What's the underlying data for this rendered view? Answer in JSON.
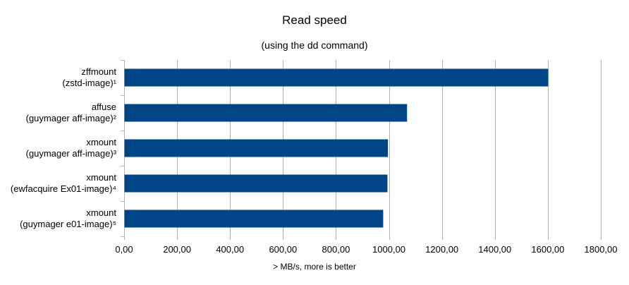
{
  "chart_data": {
    "type": "bar",
    "orientation": "horizontal",
    "title": "Read speed",
    "subtitle": "(using the dd command)",
    "xlabel": "> MB/s, more is better",
    "ylabel": "",
    "categories": [
      [
        "zffmount",
        "(zstd-image)¹"
      ],
      [
        "affuse",
        "(guymager aff-image)²"
      ],
      [
        "xmount",
        "(guymager aff-image)³"
      ],
      [
        "xmount",
        "(ewfacquire Ex01-image)⁴"
      ],
      [
        "xmount",
        "(guymager e01-image)⁵"
      ]
    ],
    "values": [
      1600,
      1067,
      995,
      993,
      977
    ],
    "xlim": [
      0,
      1800
    ],
    "xticks": [
      0,
      200,
      400,
      600,
      800,
      1000,
      1200,
      1400,
      1600,
      1800
    ],
    "xtick_labels": [
      "0,00",
      "200,00",
      "400,00",
      "600,00",
      "800,00",
      "1000,00",
      "1200,00",
      "1400,00",
      "1600,00",
      "1800,00"
    ],
    "grid": true,
    "legend": "none",
    "bar_color": "#004586",
    "grid_color": "#b3b3b3"
  }
}
